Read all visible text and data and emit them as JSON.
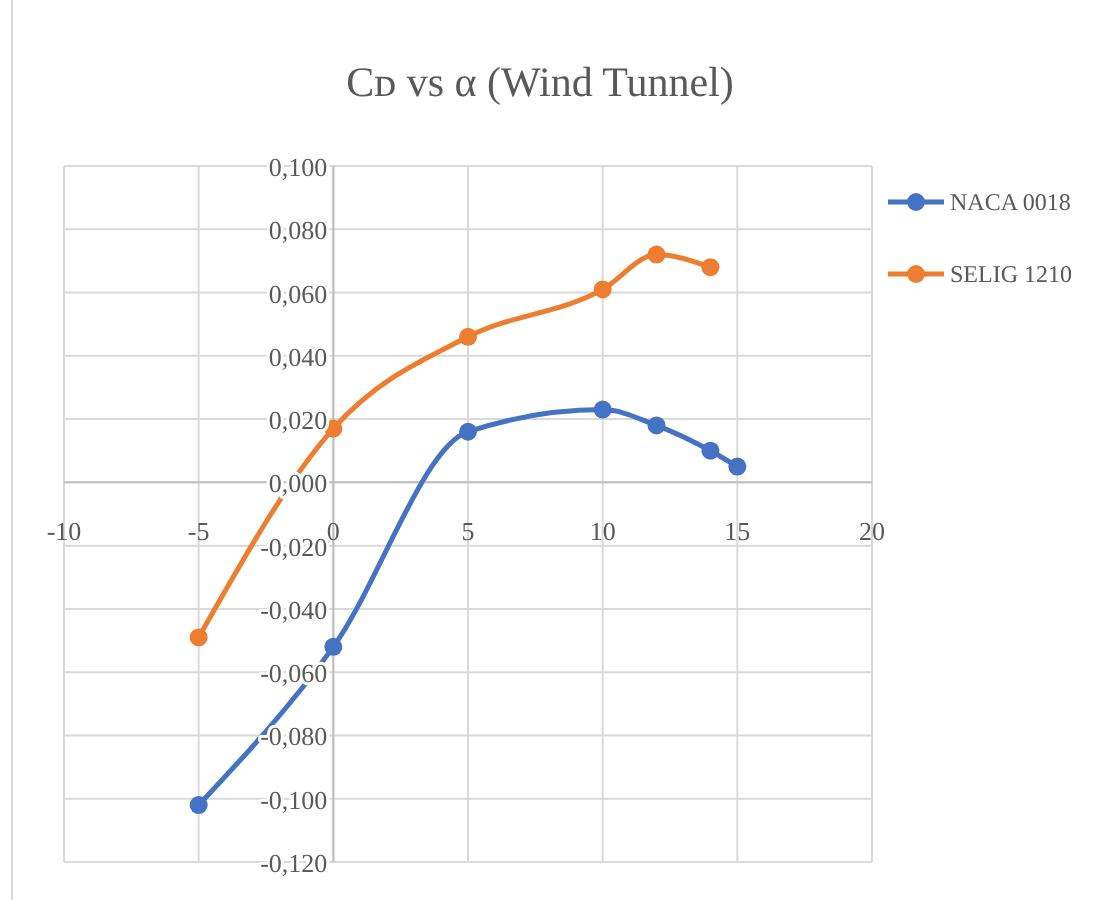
{
  "chart_data": {
    "type": "line",
    "title": "Cᴅ vs α (Wind Tunnel)",
    "xlim": [
      -10,
      20
    ],
    "xticks": [
      -10,
      -5,
      0,
      5,
      10,
      15,
      20
    ],
    "ylim": [
      -0.12,
      0.1
    ],
    "yticks": [
      {
        "value": -0.12,
        "label": "-0,120"
      },
      {
        "value": -0.1,
        "label": "-0,100"
      },
      {
        "value": -0.08,
        "label": "-0,080"
      },
      {
        "value": -0.06,
        "label": "-0,060"
      },
      {
        "value": -0.04,
        "label": "-0,040"
      },
      {
        "value": -0.02,
        "label": "-0,020"
      },
      {
        "value": 0,
        "label": "0,000"
      },
      {
        "value": 0.02,
        "label": "0,020"
      },
      {
        "value": 0.04,
        "label": "0,040"
      },
      {
        "value": 0.06,
        "label": "0,060"
      },
      {
        "value": 0.08,
        "label": "0,080"
      },
      {
        "value": 0.1,
        "label": "0,100"
      }
    ],
    "grid": true,
    "legend": "right",
    "marker": "circle",
    "line_style": "solid",
    "series": [
      {
        "name": "NACA 0018",
        "color": "#4472c4",
        "x": [
          -5,
          0,
          5,
          10,
          12,
          14,
          15
        ],
        "values": [
          -0.102,
          -0.052,
          0.016,
          0.023,
          0.018,
          0.01,
          0.005
        ]
      },
      {
        "name": "SELIG 1210",
        "color": "#ed7d31",
        "x": [
          -5,
          0,
          5,
          10,
          12,
          14
        ],
        "values": [
          -0.049,
          0.017,
          0.046,
          0.061,
          0.072,
          0.068
        ]
      }
    ]
  }
}
